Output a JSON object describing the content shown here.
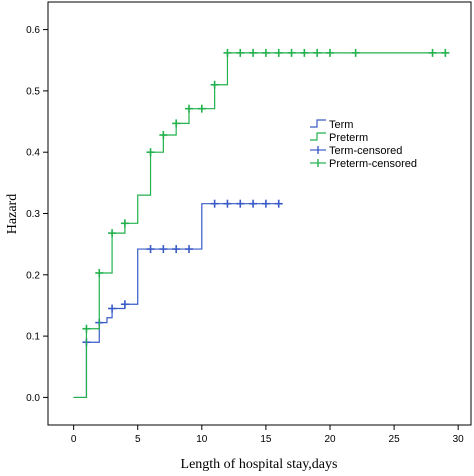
{
  "chart_data": {
    "type": "line",
    "step": true,
    "xlabel": "Length of hospital stay,days",
    "ylabel": "Hazard",
    "xlim": [
      -2,
      31
    ],
    "ylim": [
      -0.045,
      0.645
    ],
    "xticks": [
      0,
      5,
      10,
      15,
      20,
      25,
      30
    ],
    "yticks": [
      0.0,
      0.1,
      0.2,
      0.3,
      0.4,
      0.5,
      0.6
    ],
    "grid": false,
    "legend_position": "right",
    "legend": [
      "Term",
      "Preterm",
      "Term-censored",
      "Preterm-censored"
    ],
    "series": [
      {
        "name": "Term",
        "color": "#3a5bc7",
        "steps": [
          [
            0,
            0.0
          ],
          [
            1,
            0.09
          ],
          [
            2,
            0.122
          ],
          [
            2.6,
            0.13
          ],
          [
            3,
            0.145
          ],
          [
            4,
            0.152
          ],
          [
            5,
            0.242
          ],
          [
            10,
            0.316
          ],
          [
            16,
            0.316
          ]
        ],
        "censored": [
          1,
          2,
          3,
          4,
          6,
          7,
          8,
          9,
          11,
          12,
          13,
          14,
          15,
          16
        ]
      },
      {
        "name": "Preterm",
        "color": "#22b14c",
        "steps": [
          [
            0,
            0.0
          ],
          [
            1,
            0.112
          ],
          [
            2,
            0.203
          ],
          [
            3,
            0.268
          ],
          [
            4,
            0.284
          ],
          [
            5,
            0.33
          ],
          [
            6,
            0.4
          ],
          [
            7,
            0.428
          ],
          [
            8,
            0.447
          ],
          [
            9,
            0.471
          ],
          [
            11,
            0.51
          ],
          [
            12,
            0.562
          ],
          [
            29,
            0.562
          ]
        ],
        "censored": [
          1,
          2,
          3,
          4,
          6,
          7,
          8,
          9,
          10,
          11,
          12,
          13,
          14,
          15,
          16,
          17,
          18,
          19,
          20,
          22,
          28,
          29
        ]
      }
    ]
  }
}
